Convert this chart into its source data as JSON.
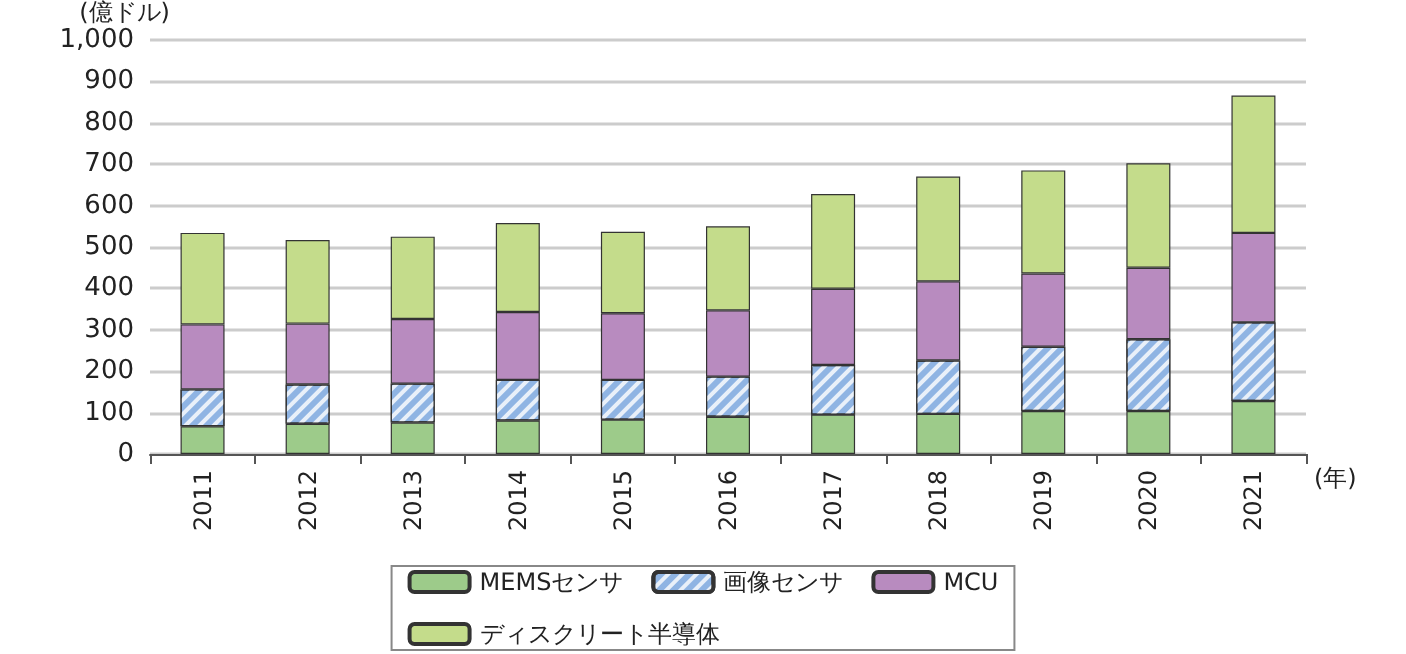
{
  "chart_data": {
    "type": "bar",
    "stacked": true,
    "ylabel": "(億ドル)",
    "xlabel": "(年)",
    "categories": [
      "2011",
      "2012",
      "2013",
      "2014",
      "2015",
      "2016",
      "2017",
      "2018",
      "2019",
      "2020",
      "2021"
    ],
    "series": [
      {
        "name": "MEMSセンサ",
        "color": "#9dcb8a",
        "values": [
          67,
          73,
          76,
          81,
          83,
          90,
          95,
          97,
          104,
          104,
          128
        ]
      },
      {
        "name": "画像センサ",
        "color": "#8fb4e3",
        "values": [
          89,
          95,
          94,
          98,
          96,
          97,
          120,
          129,
          155,
          173,
          190
        ]
      },
      {
        "name": "MCU",
        "color": "#b88bbf",
        "values": [
          157,
          147,
          156,
          164,
          161,
          160,
          184,
          191,
          177,
          173,
          216
        ]
      },
      {
        "name": "ディスクリート半導体",
        "color": "#c4dc8b",
        "values": [
          221,
          202,
          199,
          215,
          197,
          203,
          229,
          253,
          249,
          252,
          332
        ]
      }
    ],
    "ylim": [
      0,
      1000
    ],
    "yticks": [
      0,
      100,
      200,
      300,
      400,
      500,
      600,
      700,
      800,
      900,
      {
        "value": 1000,
        "label": "1,000"
      }
    ],
    "grid": "y",
    "legend": "bottom"
  }
}
